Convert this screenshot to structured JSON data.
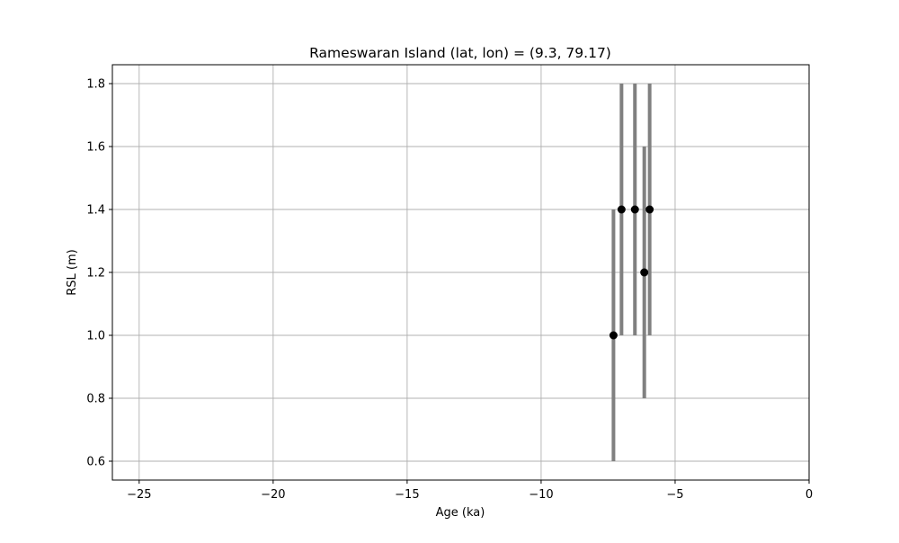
{
  "chart_data": {
    "type": "scatter",
    "title": "Rameswaran Island (lat, lon) = (9.3, 79.17)",
    "xlabel": "Age (ka)",
    "ylabel": "RSL (m)",
    "xlim": [
      -26,
      0
    ],
    "ylim": [
      0.54,
      1.86
    ],
    "xticks": [
      -25,
      -20,
      -15,
      -10,
      -5,
      0
    ],
    "xtick_labels": [
      "−25",
      "−20",
      "−15",
      "−10",
      "−5",
      "0"
    ],
    "yticks": [
      0.6,
      0.8,
      1.0,
      1.2,
      1.4,
      1.6,
      1.8
    ],
    "ytick_labels": [
      "0.6",
      "0.8",
      "1.0",
      "1.2",
      "1.4",
      "1.6",
      "1.8"
    ],
    "grid": true,
    "legend": "none",
    "series": [
      {
        "marker_color": "#000000",
        "errorbar_color": "#808080",
        "points": [
          {
            "x": -7.3,
            "y": 1.0,
            "y_low": 0.6,
            "y_high": 1.4
          },
          {
            "x": -7.0,
            "y": 1.4,
            "y_low": 1.0,
            "y_high": 1.8
          },
          {
            "x": -6.5,
            "y": 1.4,
            "y_low": 1.0,
            "y_high": 1.8
          },
          {
            "x": -6.15,
            "y": 1.2,
            "y_low": 0.8,
            "y_high": 1.6
          },
          {
            "x": -5.95,
            "y": 1.4,
            "y_low": 1.0,
            "y_high": 1.8
          }
        ]
      }
    ]
  }
}
